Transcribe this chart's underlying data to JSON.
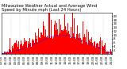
{
  "title_line1": "Milwaukee Weather Actual and Average Wind",
  "title_line2": "Speed by Minute mph (Last 24 Hours)",
  "bar_color": "#ff0000",
  "line_color": "#0000ff",
  "bg_color": "#ffffff",
  "plot_bg_color": "#ffffff",
  "grid_color": "#aaaaaa",
  "n_points": 144,
  "ylim": [
    0,
    22
  ],
  "yticks": [
    2,
    4,
    6,
    8,
    10,
    12,
    14,
    16,
    18,
    20
  ],
  "title_fontsize": 3.8,
  "tick_fontsize": 2.8,
  "n_vlines": 12
}
